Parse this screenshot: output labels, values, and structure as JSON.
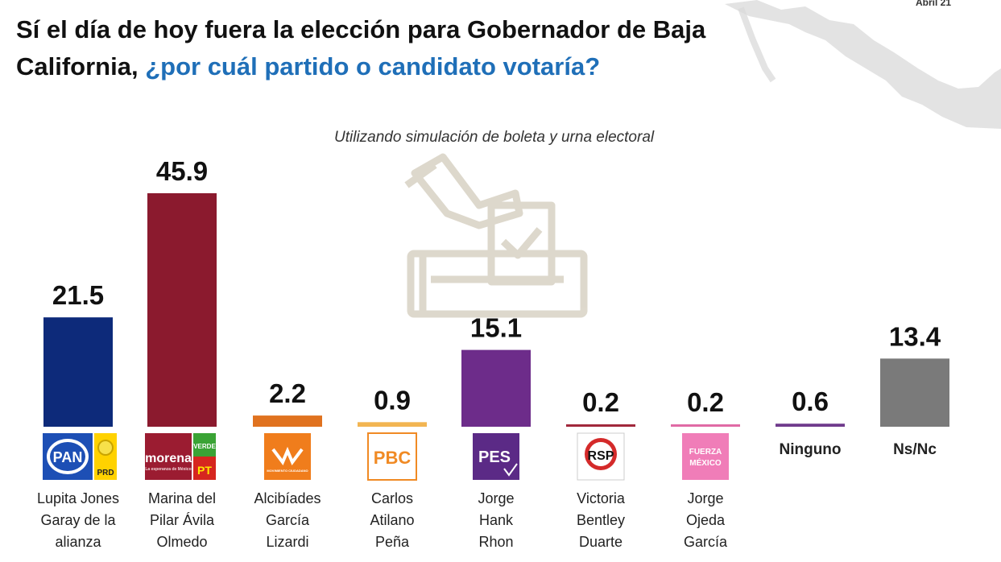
{
  "header": {
    "title_part1": "Sí el día de hoy fuera la elección para Gobernador de Baja California, ",
    "title_part2": "¿por cuál partido o candidato votaría?",
    "corner_date": "Abril 21"
  },
  "chart_data": {
    "type": "bar",
    "title": "Sí el día de hoy fuera la elección para Gobernador de Baja California, ¿por cuál partido o candidato votaría?",
    "subtitle": "Utilizando simulación de boleta y urna electoral",
    "categories": [
      "Lupita Jones Garay de la alianza",
      "Marina del Pilar Ávila Olmedo",
      "Alcibíades García Lizardi",
      "Carlos Atilano Peña",
      "Jorge Hank Rhon",
      "Victoria Bentley Duarte",
      "Jorge Ojeda García",
      "Ninguno",
      "Ns/Nc"
    ],
    "values": [
      21.5,
      45.9,
      2.2,
      0.9,
      15.1,
      0.2,
      0.2,
      0.6,
      13.4
    ],
    "value_labels": [
      "21.5",
      "45.9",
      "2.2",
      "0.9",
      "15.1",
      "0.2",
      "0.2",
      "0.6",
      "13.4"
    ],
    "colors": [
      "#0d2a7a",
      "#8b1a2e",
      "#e0721f",
      "#f2b552",
      "#6d2c8a",
      "#a1283c",
      "#e06aa5",
      "#6f3a8c",
      "#7a7a7a"
    ],
    "logos": [
      "PAN",
      "morena",
      "MC",
      "PBC",
      "PES",
      "RSP",
      "FUERZA MÉXICO",
      "",
      ""
    ],
    "logo_sublabels": {
      "pan_alliance": [
        "PRD"
      ],
      "morena_alliance": [
        "VERDE",
        "PT"
      ],
      "mc": "MOVIMIENTO CIUDADANO",
      "morena_tagline": "La esperanza de México"
    },
    "candidate_lines": [
      [
        "Lupita Jones",
        "Garay de la",
        "alianza"
      ],
      [
        "Marina del",
        "Pilar Ávila",
        "Olmedo"
      ],
      [
        "Alcibíades",
        "García",
        "Lizardi"
      ],
      [
        "Carlos",
        "Atilano",
        "Peña"
      ],
      [
        "Jorge",
        "Hank",
        "Rhon"
      ],
      [
        "Victoria",
        "Bentley",
        "Duarte"
      ],
      [
        "Jorge",
        "Ojeda",
        "García"
      ],
      [],
      []
    ],
    "ylim": [
      0,
      48
    ],
    "grid": false,
    "legend": "none"
  }
}
